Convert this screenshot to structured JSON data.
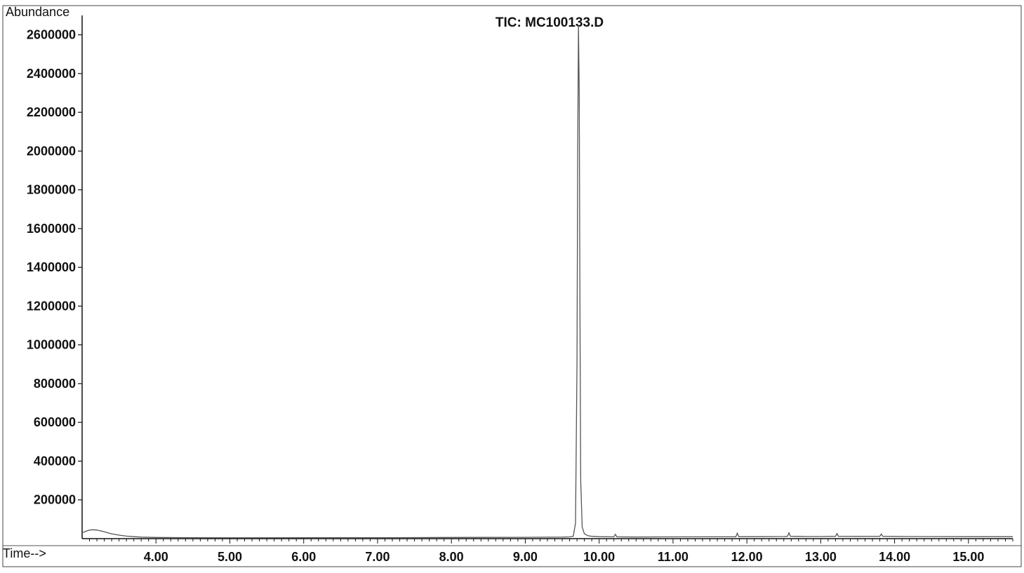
{
  "chart_data": {
    "type": "line",
    "title": "TIC: MC100133.D",
    "ylabel": "Abundance",
    "xlabel": "Time-->",
    "xlim": [
      3.0,
      15.6
    ],
    "ylim": [
      0,
      2700000
    ],
    "grid": false,
    "legend": "none",
    "x_ticks": [
      4,
      5,
      6,
      7,
      8,
      9,
      10,
      11,
      12,
      13,
      14,
      15
    ],
    "x_tick_labels": [
      "4.00",
      "5.00",
      "6.00",
      "7.00",
      "8.00",
      "9.00",
      "10.00",
      "11.00",
      "12.00",
      "13.00",
      "14.00",
      "15.00"
    ],
    "y_ticks": [
      200000,
      400000,
      600000,
      800000,
      1000000,
      1200000,
      1400000,
      1600000,
      1800000,
      2000000,
      2200000,
      2400000,
      2600000
    ],
    "y_tick_labels": [
      "200000",
      "400000",
      "600000",
      "800000",
      "1000000",
      "1200000",
      "1400000",
      "1600000",
      "1800000",
      "2000000",
      "2200000",
      "2400000",
      "2600000"
    ],
    "series": [
      {
        "color": "#555555",
        "points": [
          [
            3.0,
            30000
          ],
          [
            3.05,
            38000
          ],
          [
            3.1,
            44000
          ],
          [
            3.15,
            46000
          ],
          [
            3.2,
            44000
          ],
          [
            3.25,
            40000
          ],
          [
            3.3,
            35000
          ],
          [
            3.35,
            30000
          ],
          [
            3.4,
            25000
          ],
          [
            3.5,
            18000
          ],
          [
            3.6,
            13000
          ],
          [
            3.7,
            10000
          ],
          [
            3.8,
            8000
          ],
          [
            4.0,
            6000
          ],
          [
            4.5,
            5000
          ],
          [
            5.0,
            4500
          ],
          [
            5.5,
            4500
          ],
          [
            6.0,
            4800
          ],
          [
            6.5,
            5000
          ],
          [
            7.0,
            5200
          ],
          [
            7.5,
            5500
          ],
          [
            8.0,
            6000
          ],
          [
            8.5,
            6500
          ],
          [
            9.0,
            7000
          ],
          [
            9.5,
            8000
          ],
          [
            9.6,
            9000
          ],
          [
            9.65,
            12000
          ],
          [
            9.68,
            80000
          ],
          [
            9.7,
            900000
          ],
          [
            9.71,
            2000000
          ],
          [
            9.72,
            2650000
          ],
          [
            9.73,
            2300000
          ],
          [
            9.74,
            1200000
          ],
          [
            9.75,
            300000
          ],
          [
            9.77,
            60000
          ],
          [
            9.8,
            25000
          ],
          [
            9.85,
            15000
          ],
          [
            9.9,
            12000
          ],
          [
            10.0,
            10000
          ],
          [
            10.2,
            9000
          ],
          [
            10.22,
            22000
          ],
          [
            10.24,
            9000
          ],
          [
            10.5,
            8500
          ],
          [
            11.0,
            9000
          ],
          [
            11.5,
            9500
          ],
          [
            11.85,
            9500
          ],
          [
            11.87,
            28000
          ],
          [
            11.89,
            10000
          ],
          [
            12.2,
            10000
          ],
          [
            12.5,
            11000
          ],
          [
            12.55,
            12000
          ],
          [
            12.57,
            30000
          ],
          [
            12.59,
            12000
          ],
          [
            12.8,
            11000
          ],
          [
            13.0,
            11000
          ],
          [
            13.2,
            12000
          ],
          [
            13.22,
            26000
          ],
          [
            13.24,
            12000
          ],
          [
            13.5,
            11500
          ],
          [
            13.8,
            12000
          ],
          [
            13.82,
            24000
          ],
          [
            13.84,
            12000
          ],
          [
            14.2,
            11000
          ],
          [
            14.5,
            10500
          ],
          [
            15.0,
            10000
          ],
          [
            15.4,
            10000
          ],
          [
            15.6,
            10000
          ]
        ]
      }
    ]
  }
}
